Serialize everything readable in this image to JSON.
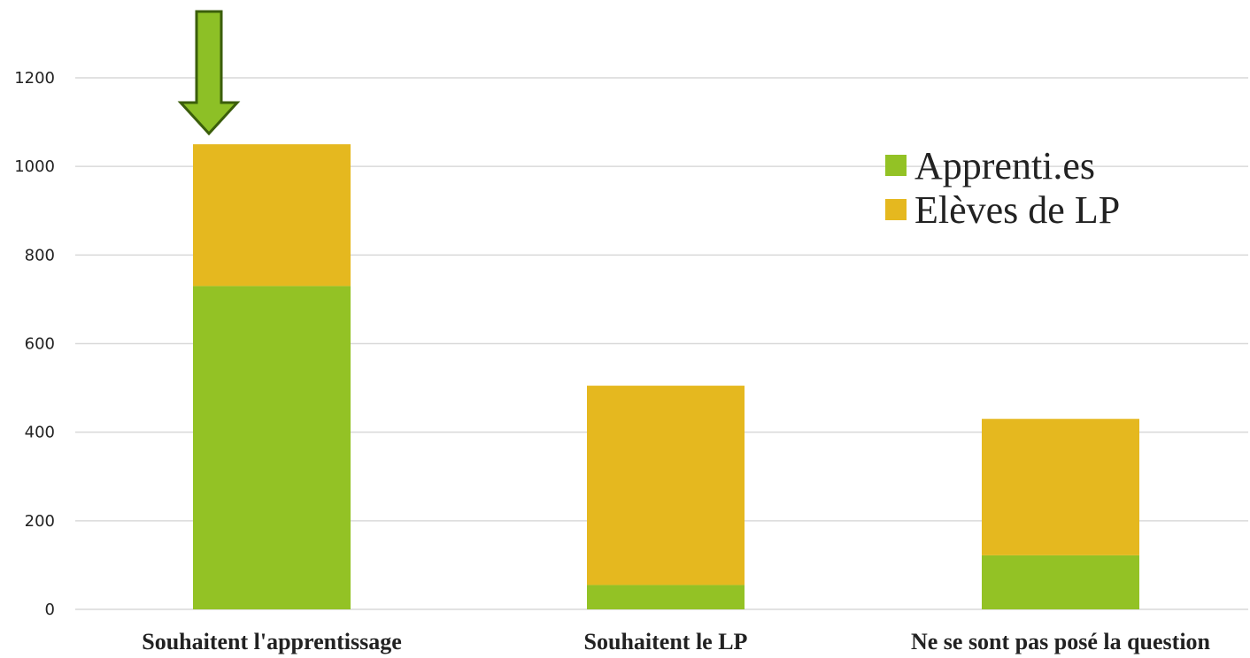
{
  "chart_data": {
    "type": "bar",
    "stacked": true,
    "title": "",
    "xlabel": "",
    "ylabel": "",
    "categories": [
      "Souhaitent l'apprentissage",
      "Souhaitent le LP",
      "Ne se sont pas posé la question"
    ],
    "series": [
      {
        "name": "Apprenti.es",
        "color": "#93C225",
        "values": [
          730,
          55,
          122
        ]
      },
      {
        "name": "Elèves de LP",
        "color": "#E5B81F",
        "values": [
          320,
          450,
          308
        ]
      }
    ],
    "ylim": [
      0,
      1300
    ],
    "yticks": [
      "0",
      "200",
      "400",
      "600",
      "800",
      "1000",
      "1200"
    ],
    "grid": true,
    "legend_position": "top-right",
    "annotation": {
      "type": "arrow",
      "points_to": "Souhaitent l'apprentissage",
      "color": "#8DC026"
    }
  }
}
